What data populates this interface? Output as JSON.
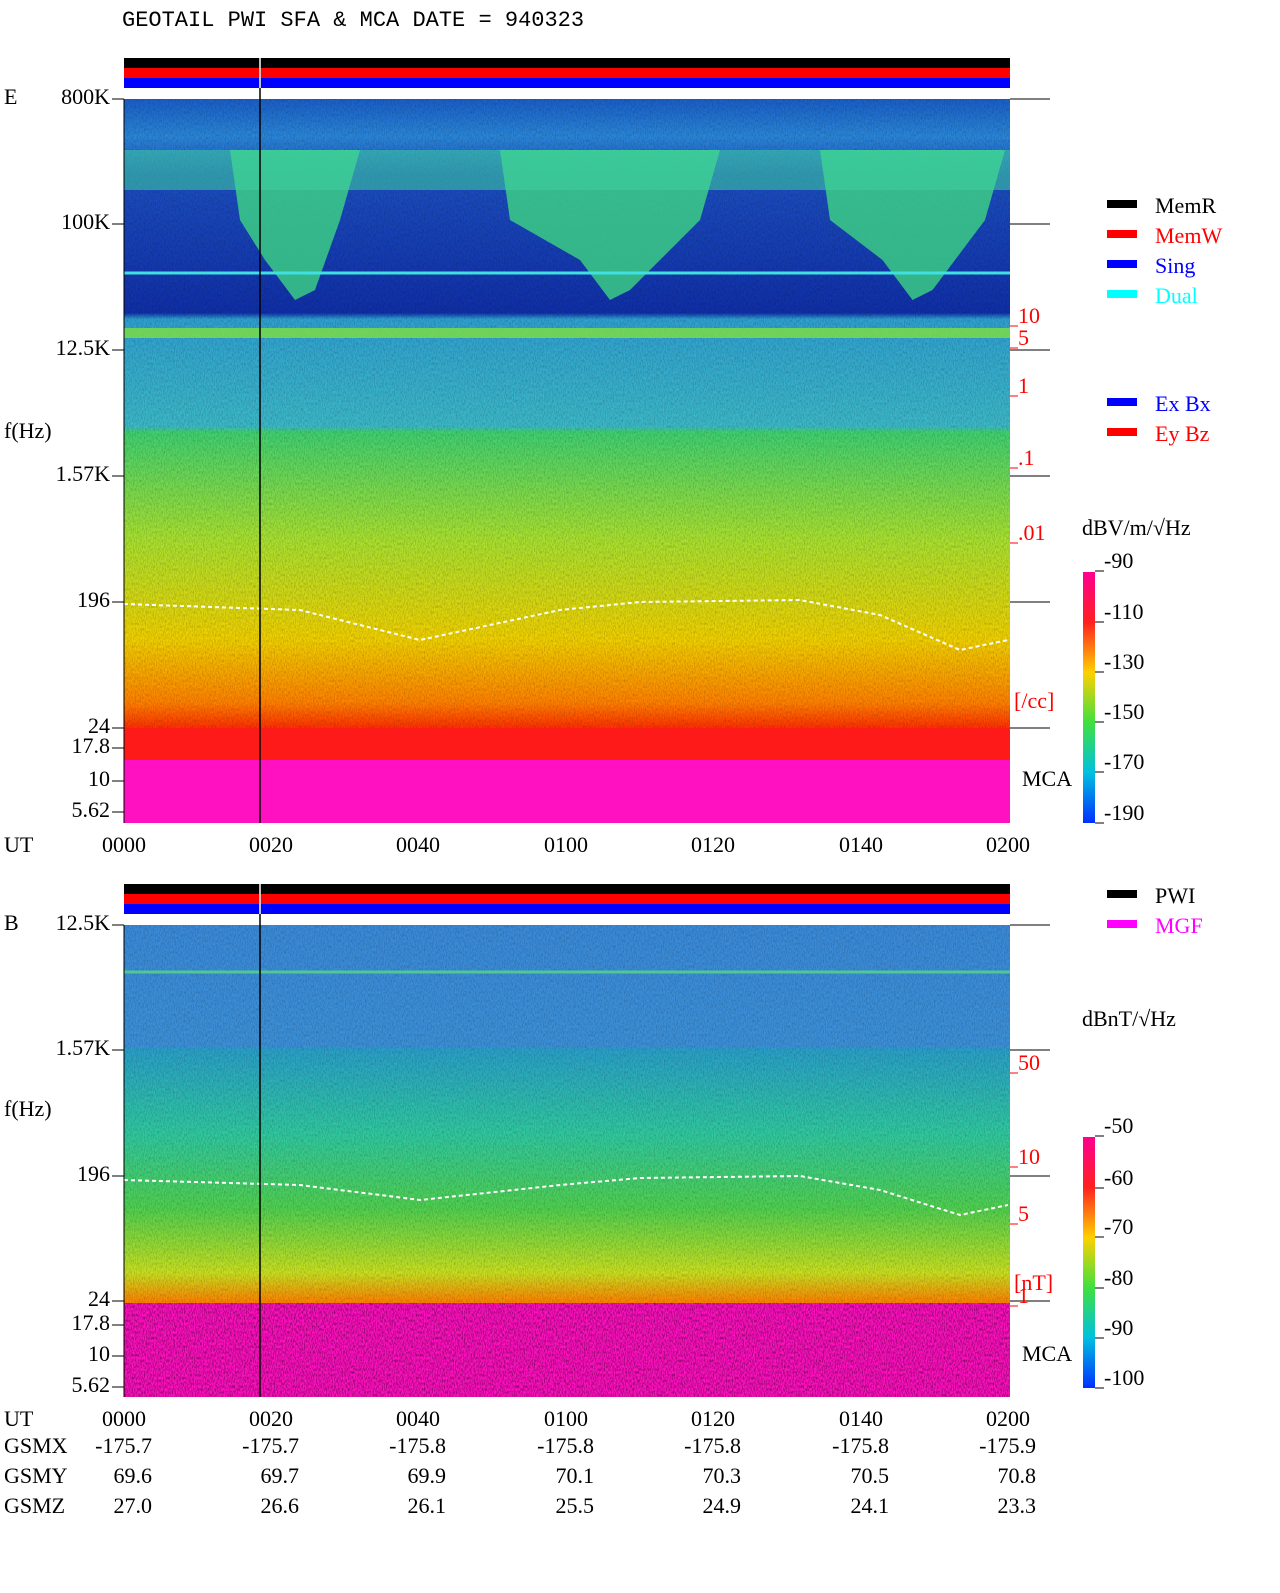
{
  "header": {
    "title": "GEOTAIL  PWI SFA & MCA   DATE = 940323"
  },
  "legend": {
    "modes": [
      {
        "label": "MemR",
        "color": "#000000"
      },
      {
        "label": "MemW",
        "color": "#ff0000"
      },
      {
        "label": "Sing",
        "color": "#0000ff"
      },
      {
        "label": "Dual",
        "color": "#00ffff"
      }
    ],
    "components": [
      {
        "label": "Ex Bx",
        "color": "#0000ff"
      },
      {
        "label": "Ey Bz",
        "color": "#ff0000"
      }
    ],
    "sources": [
      {
        "label": "PWI",
        "color": "#000000"
      },
      {
        "label": "MGF",
        "color": "#ff00ff"
      }
    ]
  },
  "panels": [
    {
      "label": "E",
      "ylabel": "f(Hz)",
      "yticks": [
        "800K",
        "100K",
        "12.5K",
        "1.57K",
        "196",
        "24",
        "17.8",
        "10",
        "5.62"
      ],
      "right_ticks": [
        "10",
        "5",
        "1",
        ".1",
        ".01"
      ],
      "right_unit": "[/cc]",
      "mca": "MCA",
      "colorbar": {
        "unit": "dBV/m/√Hz",
        "ticks": [
          "-90",
          "-110",
          "-130",
          "-150",
          "-170",
          "-190"
        ]
      },
      "xlabel": "UT",
      "xticks": [
        "0000",
        "0020",
        "0040",
        "0100",
        "0120",
        "0140",
        "0200"
      ]
    },
    {
      "label": "B",
      "ylabel": "f(Hz)",
      "yticks": [
        "12.5K",
        "1.57K",
        "196",
        "24",
        "17.8",
        "10",
        "5.62"
      ],
      "right_ticks": [
        "50",
        "10",
        "5",
        "1"
      ],
      "right_unit": "[nT]",
      "mca": "MCA",
      "colorbar": {
        "unit": "dBnT/√Hz",
        "ticks": [
          "-50",
          "-60",
          "-70",
          "-80",
          "-90",
          "-100"
        ]
      },
      "xlabel": "UT",
      "xticks": [
        "0000",
        "0020",
        "0040",
        "0100",
        "0120",
        "0140",
        "0200"
      ]
    }
  ],
  "orbit": {
    "rows": [
      {
        "label": "GSMX",
        "values": [
          "-175.7",
          "-175.7",
          "-175.8",
          "-175.8",
          "-175.8",
          "-175.8",
          "-175.9"
        ]
      },
      {
        "label": "GSMY",
        "values": [
          "69.6",
          "69.7",
          "69.9",
          "70.1",
          "70.3",
          "70.5",
          "70.8"
        ]
      },
      {
        "label": "GSMZ",
        "values": [
          "27.0",
          "26.6",
          "26.1",
          "25.5",
          "24.9",
          "24.1",
          "23.3"
        ]
      }
    ]
  }
}
